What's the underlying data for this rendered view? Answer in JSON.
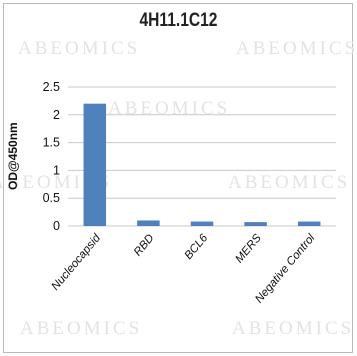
{
  "chart_data": {
    "type": "bar",
    "title": "4H11.1C12",
    "ylabel": "OD@450nm",
    "xlabel": "",
    "categories": [
      "Nucleocapsid",
      "RBD",
      "BCL6",
      "MERS",
      "Negative Control"
    ],
    "values": [
      2.2,
      0.1,
      0.08,
      0.07,
      0.08
    ],
    "ylim": [
      0,
      2.5
    ],
    "yticks": [
      "0",
      "0.5",
      "1",
      "1.5",
      "2",
      "2.5"
    ],
    "grid": true,
    "legend": "none",
    "bar_color": "#4f81bd",
    "grid_color": "#c8c8c8"
  },
  "watermark": "ABEOMICS"
}
